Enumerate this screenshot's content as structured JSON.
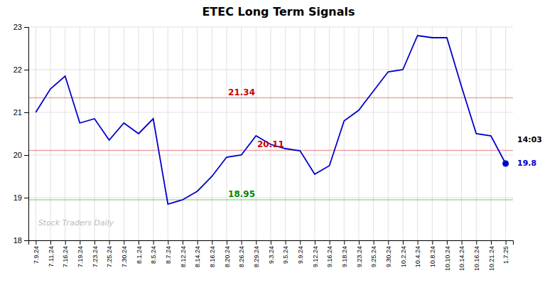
{
  "chart_data": {
    "type": "line",
    "title": "ETEC Long Term Signals",
    "categories": [
      "7.9.24",
      "7.11.24",
      "7.16.24",
      "7.19.24",
      "7.23.24",
      "7.25.24",
      "7.30.24",
      "8.1.24",
      "8.5.24",
      "8.7.24",
      "8.12.24",
      "8.14.24",
      "8.16.24",
      "8.20.24",
      "8.26.24",
      "8.29.24",
      "9.3.24",
      "9.5.24",
      "9.9.24",
      "9.12.24",
      "9.16.24",
      "9.18.24",
      "9.23.24",
      "9.25.24",
      "9.30.24",
      "10.2.24",
      "10.4.24",
      "10.8.24",
      "10.10.24",
      "10.14.24",
      "10.16.24",
      "10.21.24",
      "1.7.25"
    ],
    "values": [
      21.0,
      21.55,
      21.85,
      20.75,
      20.85,
      20.35,
      20.75,
      20.5,
      20.85,
      18.85,
      18.95,
      19.15,
      19.5,
      19.95,
      20.0,
      20.45,
      20.25,
      20.15,
      20.1,
      19.55,
      19.75,
      20.8,
      21.05,
      21.5,
      21.95,
      22.0,
      22.8,
      22.75,
      22.75,
      21.6,
      20.5,
      20.45,
      19.8
    ],
    "color": "#0000cc",
    "ylim": [
      18,
      23
    ],
    "yticks": [
      18,
      19,
      20,
      21,
      22,
      23
    ],
    "grid": true,
    "hlines": [
      {
        "value": 21.34,
        "label": "21.34",
        "color": "#cc0000"
      },
      {
        "value": 20.11,
        "label": "20.11",
        "color": "#cc0000"
      },
      {
        "value": 18.95,
        "label": "18.95",
        "color": "#008800"
      }
    ],
    "annotations": [
      {
        "text": "14:03",
        "color": "#000000"
      },
      {
        "text": "19.8",
        "color": "#0000cc"
      }
    ],
    "watermark": "Stock Traders Daily"
  }
}
